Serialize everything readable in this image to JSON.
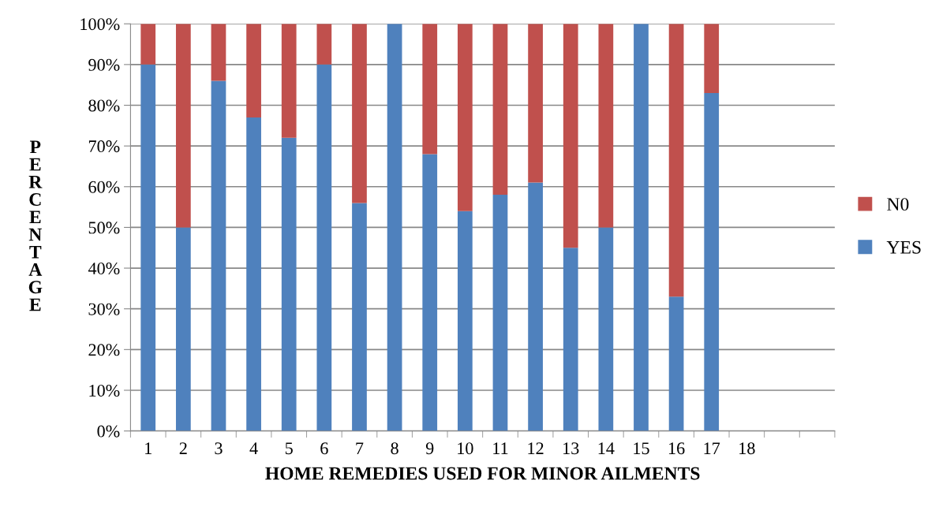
{
  "chart_data": {
    "type": "bar",
    "stacked": true,
    "xlabel": "HOME REMEDIES USED FOR MINOR AILMENTS",
    "ylabel": "PERCENTAGE",
    "categories": [
      "1",
      "2",
      "3",
      "4",
      "5",
      "6",
      "7",
      "8",
      "9",
      "10",
      "11",
      "12",
      "13",
      "14",
      "15",
      "16",
      "17",
      "18",
      null,
      null
    ],
    "series": [
      {
        "name": "YES",
        "color": "#4f81bd",
        "values": [
          90,
          50,
          86,
          77,
          72,
          90,
          56,
          100,
          68,
          54,
          58,
          61,
          45,
          50,
          100,
          33,
          83,
          null,
          null,
          null
        ]
      },
      {
        "name": "N0",
        "color": "#c0504d",
        "values": [
          10,
          50,
          14,
          23,
          28,
          10,
          44,
          0,
          32,
          46,
          42,
          39,
          55,
          50,
          0,
          67,
          17,
          null,
          null,
          null
        ]
      }
    ],
    "ylim": [
      0,
      100
    ],
    "yticks": [
      {
        "value": 0,
        "label": "0%"
      },
      {
        "value": 10,
        "label": "10%"
      },
      {
        "value": 20,
        "label": "20%"
      },
      {
        "value": 30,
        "label": "30%"
      },
      {
        "value": 40,
        "label": "40%"
      },
      {
        "value": 50,
        "label": "50%"
      },
      {
        "value": 60,
        "label": "60%"
      },
      {
        "value": 70,
        "label": "70%"
      },
      {
        "value": 80,
        "label": "80%"
      },
      {
        "value": 90,
        "label": "90%"
      },
      {
        "value": 100,
        "label": "100%"
      }
    ],
    "grid": "y",
    "legend": "right"
  }
}
